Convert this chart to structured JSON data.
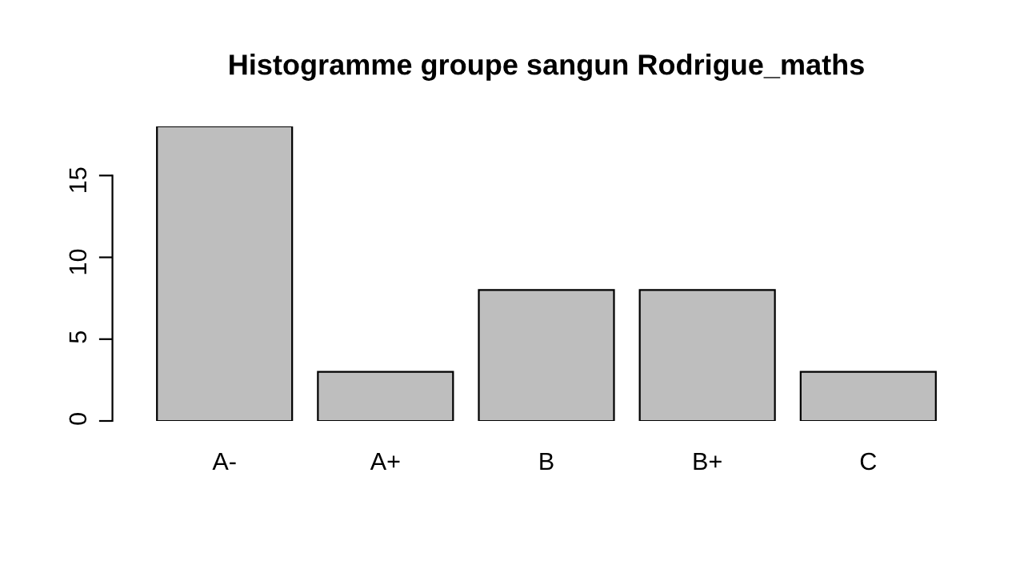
{
  "chart_data": {
    "type": "bar",
    "title": "Histogramme groupe sangun Rodrigue_maths",
    "categories": [
      "A-",
      "A+",
      "B",
      "B+",
      "C"
    ],
    "values": [
      18,
      3,
      8,
      8,
      3
    ],
    "color": "#bebebe",
    "ylim": [
      0,
      18
    ],
    "yticks": [
      0,
      5,
      10,
      15
    ],
    "grid": false,
    "legend": false
  }
}
